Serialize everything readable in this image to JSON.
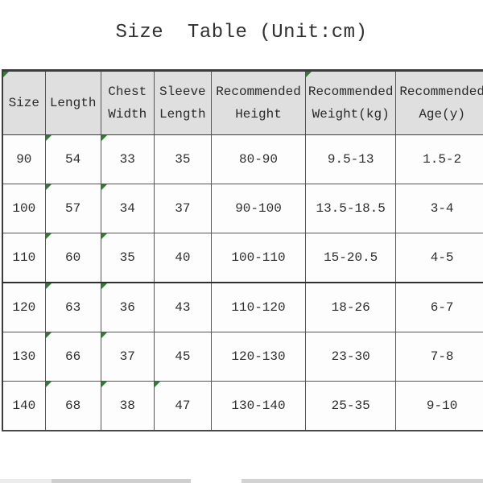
{
  "title": "Size  Table (Unit:cm)",
  "unit_label": "cm",
  "table": {
    "columns": [
      "Size",
      "Length",
      "Chest Width",
      "Sleeve Length",
      "Recommended Height",
      "Recommended Weight(kg)",
      "Recommended Age(y)"
    ],
    "rows": [
      [
        "90",
        "54",
        "33",
        "35",
        "80-90",
        "9.5-13",
        "1.5-2"
      ],
      [
        "100",
        "57",
        "34",
        "37",
        "90-100",
        "13.5-18.5",
        "3-4"
      ],
      [
        "110",
        "60",
        "35",
        "40",
        "100-110",
        "15-20.5",
        "4-5"
      ],
      [
        "120",
        "63",
        "36",
        "43",
        "110-120",
        "18-26",
        "6-7"
      ],
      [
        "130",
        "66",
        "37",
        "45",
        "120-130",
        "23-30",
        "7-8"
      ],
      [
        "140",
        "68",
        "38",
        "47",
        "130-140",
        "25-35",
        "9-10"
      ]
    ]
  },
  "markers": {
    "description": "excel-style green corner triangles",
    "color": "#2e7d32",
    "header_cells": [
      0,
      5
    ],
    "body_cells": [
      [
        0,
        1
      ],
      [
        0,
        2
      ],
      [
        1,
        1
      ],
      [
        1,
        2
      ],
      [
        2,
        1
      ],
      [
        2,
        2
      ],
      [
        3,
        1
      ],
      [
        3,
        2
      ],
      [
        4,
        1
      ],
      [
        4,
        2
      ],
      [
        5,
        1
      ],
      [
        5,
        2
      ],
      [
        5,
        3
      ]
    ]
  },
  "colors": {
    "header_background": "#dfdfdf",
    "grid_line": "#565656",
    "thick_line": "#303030",
    "text": "#2e2e2e",
    "marker_green": "#2e7d32"
  }
}
